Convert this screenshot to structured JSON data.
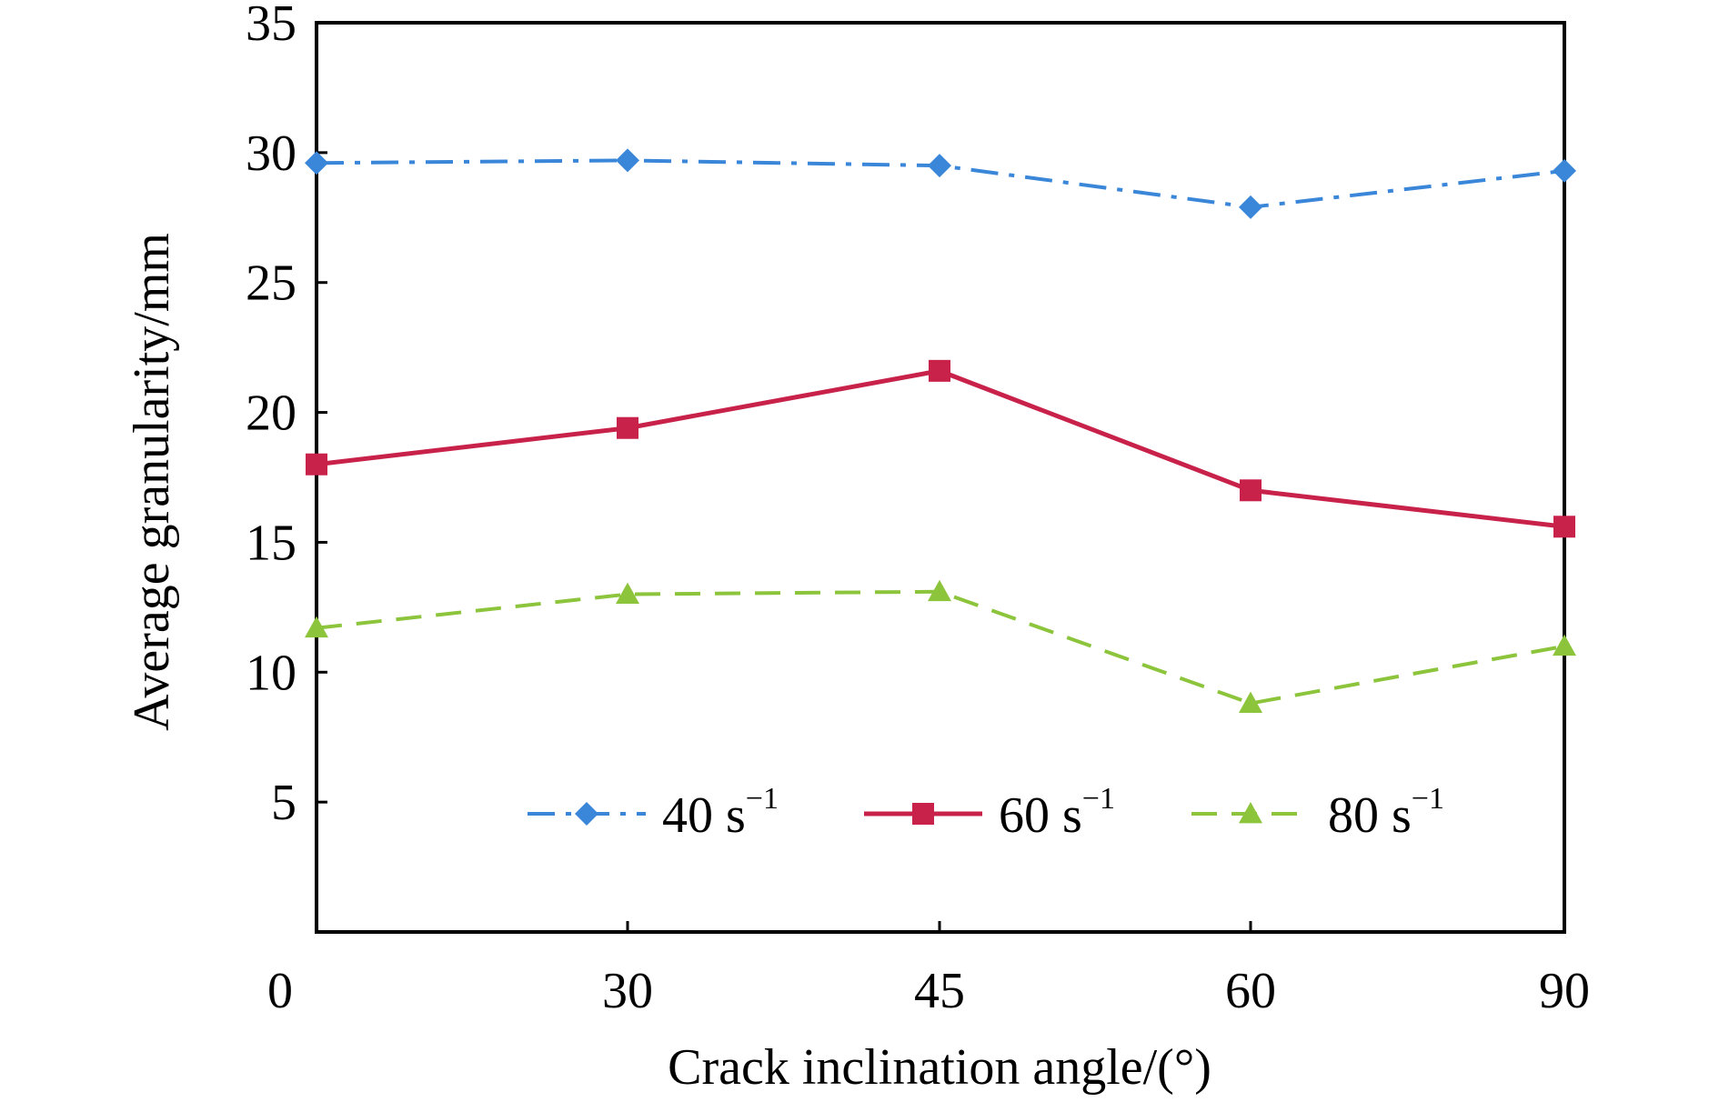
{
  "chart_data": {
    "type": "line",
    "title": "",
    "xlabel": "Crack inclination angle/(°)",
    "ylabel": "Average granularity/mm",
    "categories": [
      "0",
      "30",
      "45",
      "60",
      "90"
    ],
    "ylim": [
      0,
      35
    ],
    "yticks": [
      "5",
      "10",
      "15",
      "20",
      "25",
      "30",
      "35"
    ],
    "grid": false,
    "legend_position": "bottom-inside",
    "series": [
      {
        "name": "40 s",
        "name_superscript": "−1",
        "values": [
          29.6,
          29.7,
          29.5,
          27.9,
          29.3
        ],
        "color": "#3a86d9",
        "line_style": "dash-dot",
        "marker": "diamond"
      },
      {
        "name": "60 s",
        "name_superscript": "−1",
        "values": [
          18.0,
          19.4,
          21.6,
          17.0,
          15.6
        ],
        "color": "#c8224a",
        "line_style": "solid",
        "marker": "square"
      },
      {
        "name": "80 s",
        "name_superscript": "−1",
        "values": [
          11.7,
          13.0,
          13.1,
          8.8,
          11.0
        ],
        "color": "#8cc43c",
        "line_style": "dashed",
        "marker": "triangle"
      }
    ]
  }
}
